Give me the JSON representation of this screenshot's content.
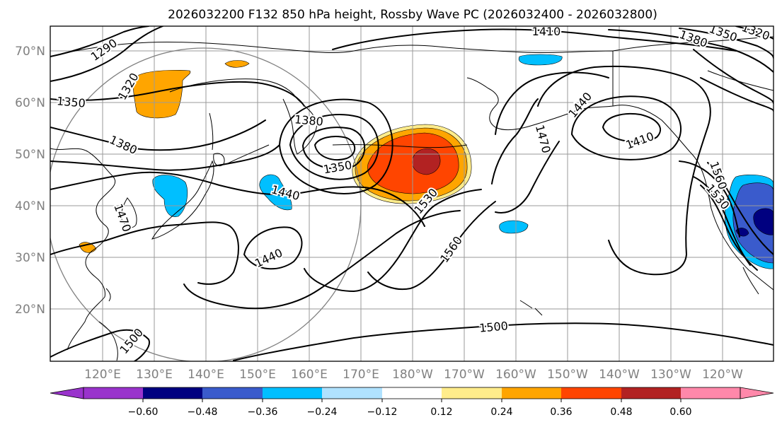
{
  "title": "2026032200 F132 850 hPa height, Rossby Wave PC (2026032400 - 2026032800)",
  "lat_ticks": [
    "70°N",
    "60°N",
    "50°N",
    "40°N",
    "30°N",
    "20°N"
  ],
  "lon_ticks": [
    "120°E",
    "130°E",
    "140°E",
    "150°E",
    "160°E",
    "170°E",
    "180°W",
    "170°W",
    "160°W",
    "150°W",
    "140°W",
    "130°W",
    "120°W"
  ],
  "colorbar": {
    "ticks": [
      "−0.60",
      "−0.48",
      "−0.36",
      "−0.24",
      "−0.12",
      "0.12",
      "0.24",
      "0.36",
      "0.48",
      "0.60"
    ],
    "colors": [
      "#9933cc",
      "#000080",
      "#3a5bcc",
      "#00bfff",
      "#b0e2ff",
      "#ffffff",
      "#ffec8b",
      "#ffa500",
      "#ff4500",
      "#b22222",
      "#ff88aa"
    ]
  },
  "contour_labels": [
    {
      "text": "1290"
    },
    {
      "text": "1320"
    },
    {
      "text": "1350"
    },
    {
      "text": "1380"
    },
    {
      "text": "1380"
    },
    {
      "text": "1350"
    },
    {
      "text": "1440"
    },
    {
      "text": "1440"
    },
    {
      "text": "1410"
    },
    {
      "text": "1380"
    },
    {
      "text": "1350"
    },
    {
      "text": "1320"
    },
    {
      "text": "1410"
    },
    {
      "text": "1440"
    },
    {
      "text": "1470"
    },
    {
      "text": "1530"
    },
    {
      "text": "1560"
    },
    {
      "text": "1500"
    },
    {
      "text": "1560"
    },
    {
      "text": "1530"
    },
    {
      "text": "1470"
    },
    {
      "text": "1500"
    }
  ]
}
